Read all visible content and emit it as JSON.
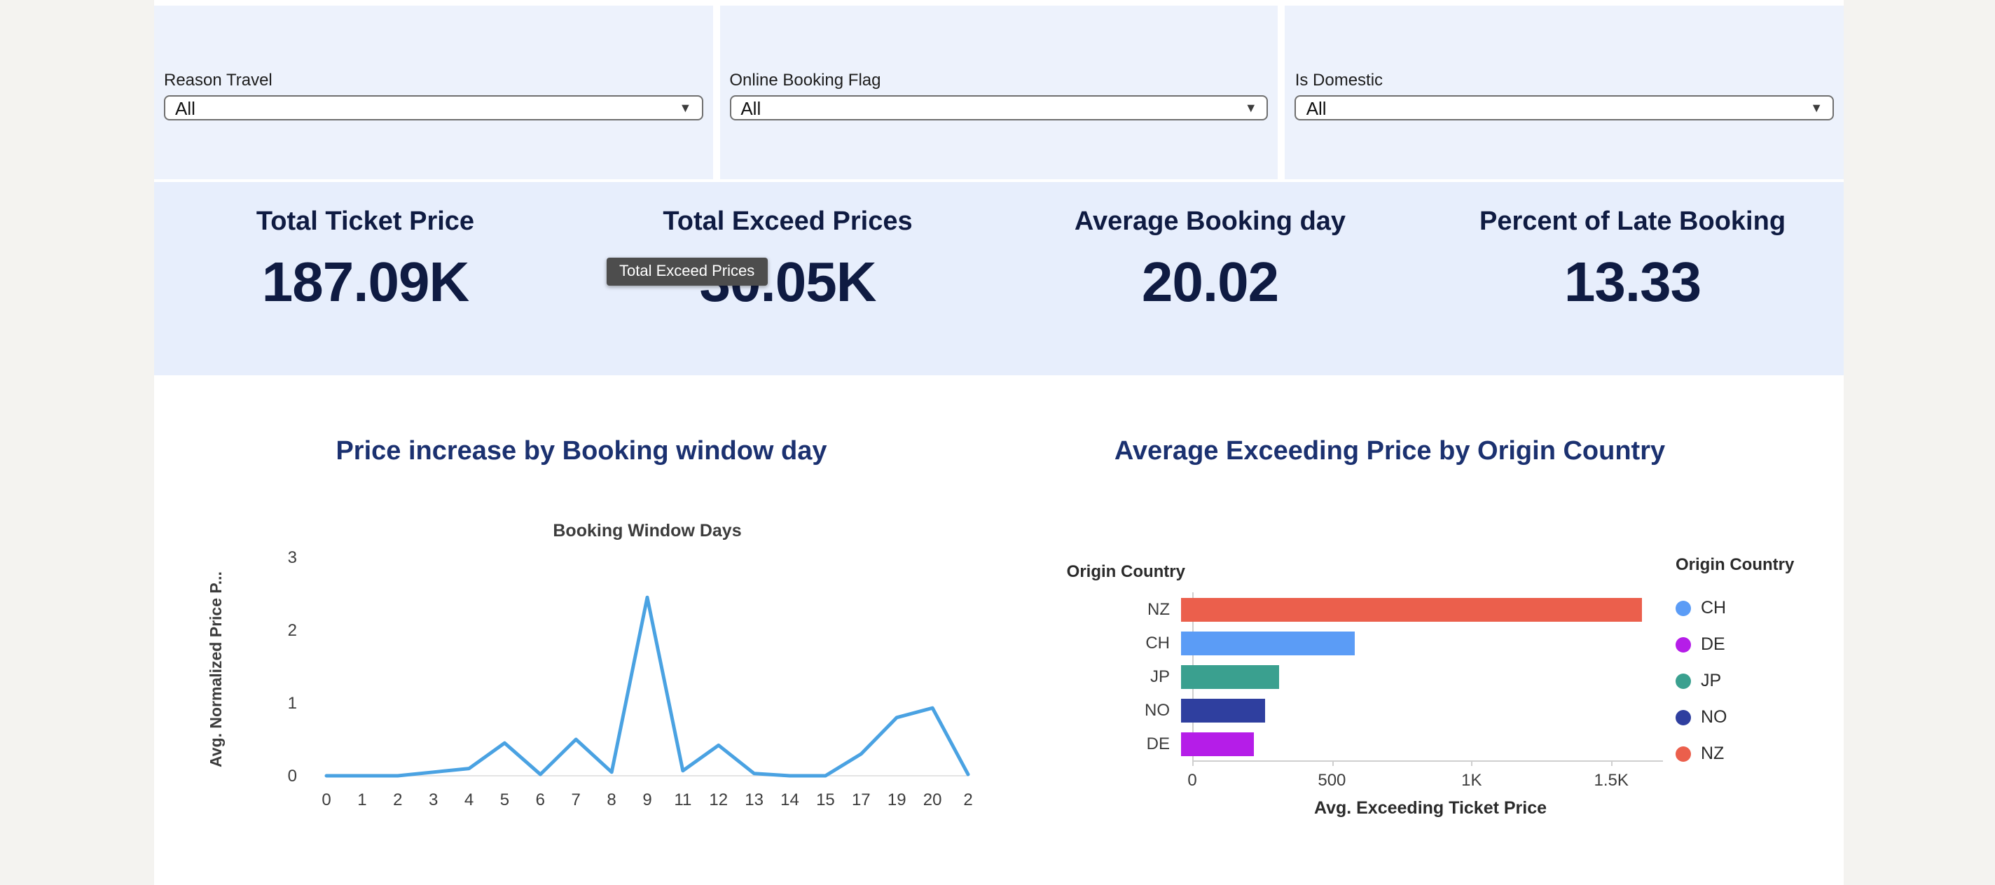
{
  "filters": {
    "items": [
      {
        "label": "Reason Travel",
        "value": "All"
      },
      {
        "label": "Online Booking Flag",
        "value": "All"
      },
      {
        "label": "Is Domestic",
        "value": "All"
      }
    ]
  },
  "kpis": {
    "items": [
      {
        "title": "Total Ticket Price",
        "value": "187.09K"
      },
      {
        "title": "Total Exceed Prices",
        "value": "30.05K"
      },
      {
        "title": "Average Booking day",
        "value": "20.02"
      },
      {
        "title": "Percent of Late Booking",
        "value": "13.33"
      }
    ]
  },
  "tooltip": {
    "text": "Total Exceed Prices"
  },
  "icons": {
    "dropdown_arrow": "▼"
  },
  "chart_data": [
    {
      "type": "line",
      "title": "Price increase by Booking window day",
      "subtitle": "Booking Window Days",
      "ylabel": "Avg. Normalized Price P...",
      "categories": [
        "0",
        "1",
        "2",
        "3",
        "4",
        "5",
        "6",
        "7",
        "8",
        "9",
        "11",
        "12",
        "13",
        "14",
        "15",
        "17",
        "19",
        "20",
        "2"
      ],
      "values": [
        0,
        0,
        0,
        0.05,
        0.1,
        0.45,
        0.02,
        0.5,
        0.05,
        2.45,
        0.07,
        0.42,
        0.03,
        0,
        0,
        0.3,
        0.8,
        0.93,
        0.02
      ],
      "ylim": [
        0,
        3
      ],
      "yticks": [
        0,
        1,
        2,
        3
      ],
      "line_color": "#4aa2e2",
      "grid": false
    },
    {
      "type": "bar",
      "orientation": "horizontal",
      "title": "Average Exceeding Price by Origin Country",
      "axis_title": "Origin Country",
      "xlabel": "Avg. Exceeding Ticket Price",
      "categories": [
        "NZ",
        "CH",
        "JP",
        "NO",
        "DE"
      ],
      "values": [
        1650,
        620,
        350,
        300,
        260
      ],
      "colors": [
        "#eb5f4c",
        "#5b9cf6",
        "#3aa08f",
        "#2f3f9f",
        "#b51de8"
      ],
      "xlim": [
        0,
        1800
      ],
      "xticks": [
        {
          "v": 0,
          "label": "0"
        },
        {
          "v": 500,
          "label": "500"
        },
        {
          "v": 1000,
          "label": "1K"
        },
        {
          "v": 1500,
          "label": "1.5K"
        }
      ],
      "legend": {
        "title": "Origin Country",
        "position": "right",
        "items": [
          {
            "label": "CH",
            "color": "#5b9cf6"
          },
          {
            "label": "DE",
            "color": "#b51de8"
          },
          {
            "label": "JP",
            "color": "#3aa08f"
          },
          {
            "label": "NO",
            "color": "#2f3f9f"
          },
          {
            "label": "NZ",
            "color": "#eb5f4c"
          }
        ]
      }
    }
  ]
}
